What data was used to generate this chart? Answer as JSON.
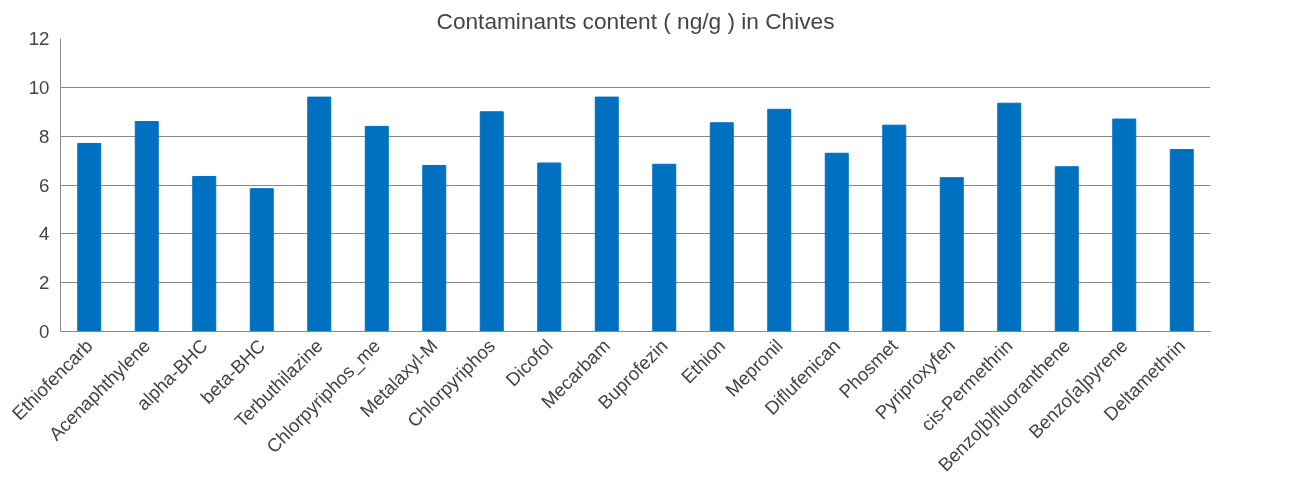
{
  "chart_data": {
    "type": "bar",
    "title": "Contaminants content ( ng/g ) in Chives",
    "categories": [
      "Ethiofencarb",
      "Acenaphthylene",
      "alpha-BHC",
      "beta-BHC",
      "Terbuthilazine",
      "Chlorpyriphos_me",
      "Metalaxyl-M",
      "Chlorpyriphos",
      "Dicofol",
      "Mecarbam",
      "Buprofezin",
      "Ethion",
      "Mepronil",
      "Diflufenican",
      "Phosmet",
      "Pyriproxyfen",
      "cis-Permethrin",
      "Benzo[b]fluoranthene",
      "Benzo[a]pyrene",
      "Deltamethrin"
    ],
    "values": [
      7.7,
      8.6,
      6.35,
      5.85,
      9.6,
      8.4,
      6.8,
      9.0,
      6.9,
      9.6,
      6.85,
      8.55,
      9.1,
      7.3,
      8.45,
      6.3,
      9.35,
      6.75,
      8.7,
      7.45
    ],
    "color": "#0070c0",
    "ylim": [
      0,
      12
    ],
    "yticks": [
      0,
      2,
      4,
      6,
      8,
      10,
      12
    ],
    "grid": "y"
  }
}
